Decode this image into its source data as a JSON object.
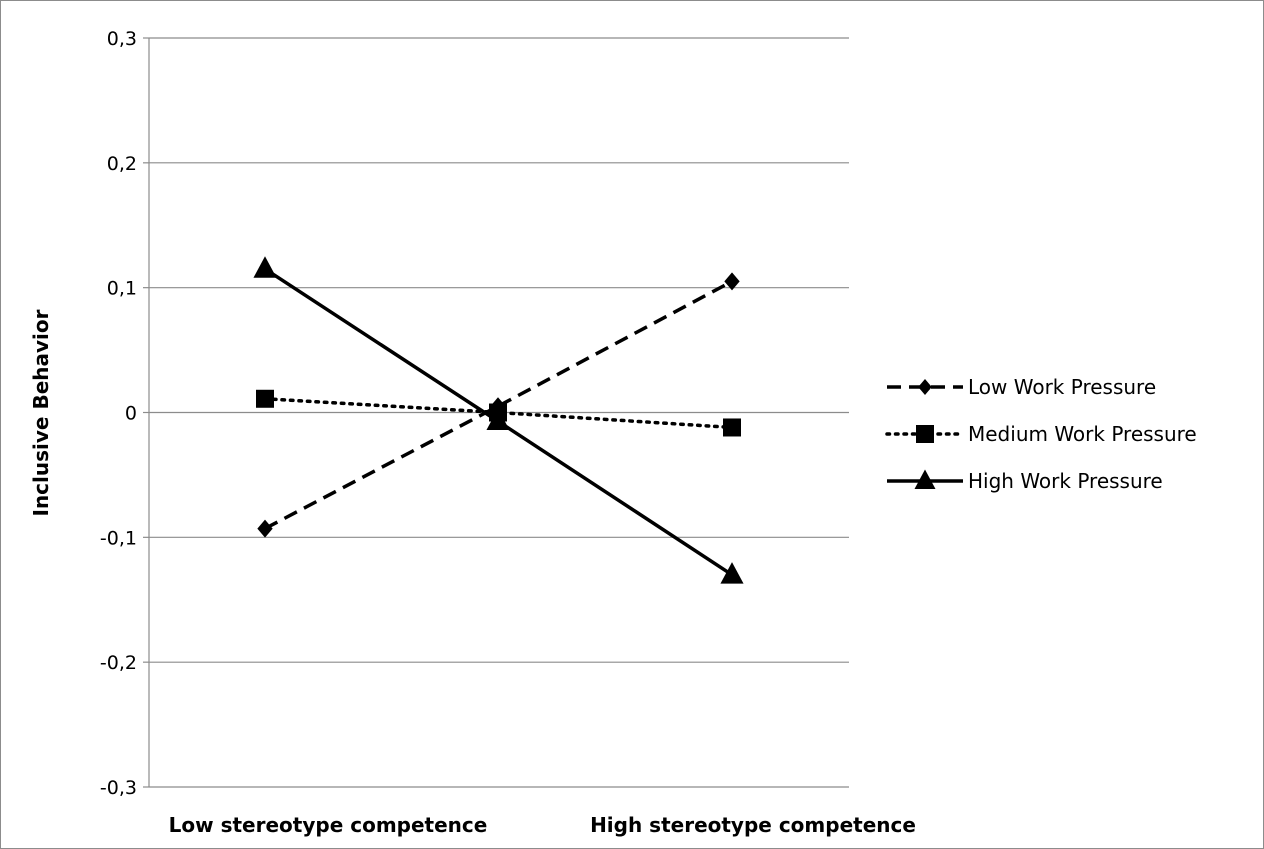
{
  "chart_data": {
    "type": "line",
    "title": "",
    "xlabel": "",
    "ylabel": "Inclusive Behavior",
    "categories": [
      "Low stereotype competence",
      "",
      "High stereotype competence"
    ],
    "ylim": [
      -0.3,
      0.3
    ],
    "y_ticks": [
      0.3,
      0.2,
      0.1,
      0,
      -0.1,
      -0.2,
      -0.3
    ],
    "y_tick_labels": [
      "0,3",
      "0,2",
      "0,1",
      "0",
      "-0,1",
      "-0,2",
      "-0,3"
    ],
    "grid": true,
    "legend_position": "right",
    "series": [
      {
        "name": "Low Work Pressure",
        "values": [
          -0.093,
          0.005,
          0.105
        ],
        "line_style": "dashed",
        "marker": "diamond",
        "color": "#000000"
      },
      {
        "name": "Medium Work Pressure",
        "values": [
          0.011,
          0.0,
          -0.012
        ],
        "line_style": "dotted",
        "marker": "square",
        "color": "#000000"
      },
      {
        "name": "High Work Pressure",
        "values": [
          0.115,
          -0.007,
          -0.13
        ],
        "line_style": "solid",
        "marker": "triangle",
        "color": "#000000"
      }
    ]
  }
}
